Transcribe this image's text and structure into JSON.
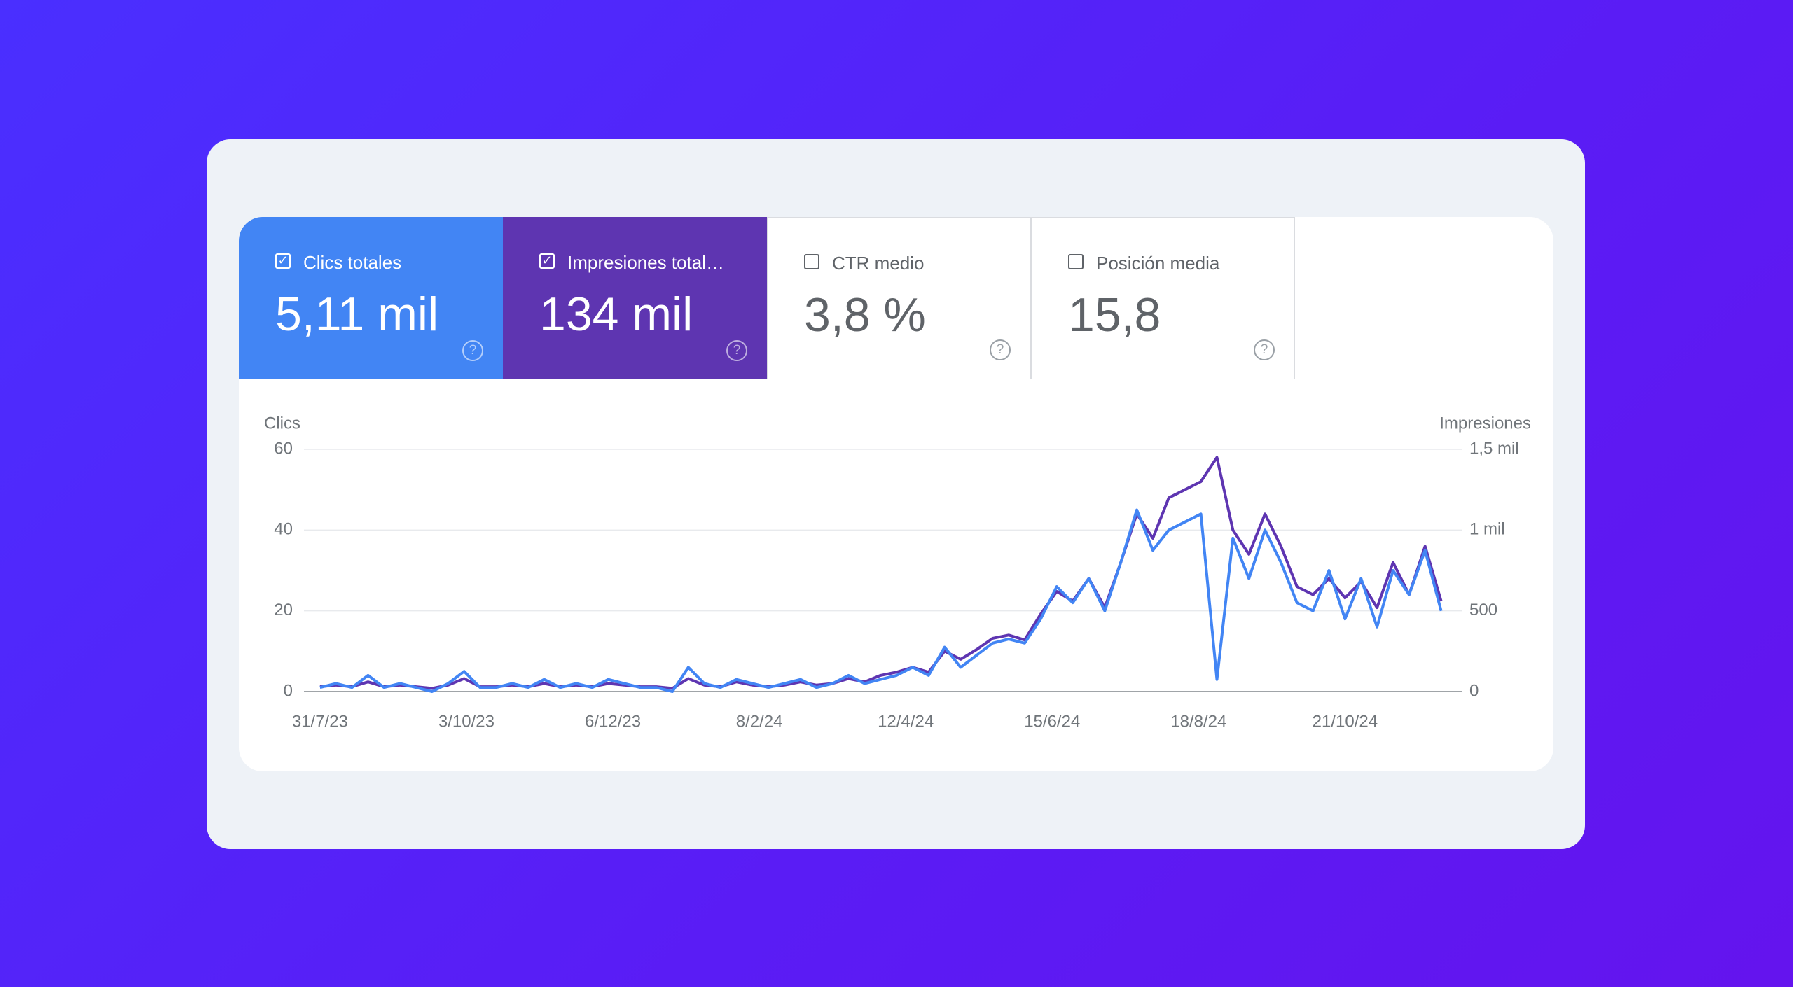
{
  "cards": [
    {
      "label": "Clics totales",
      "value": "5,11 mil",
      "checked": true
    },
    {
      "label": "Impresiones total…",
      "value": "134 mil",
      "checked": true
    },
    {
      "label": "CTR medio",
      "value": "3,8 %",
      "checked": false
    },
    {
      "label": "Posición media",
      "value": "15,8",
      "checked": false
    }
  ],
  "chart_data": {
    "type": "line",
    "ylabel": "Clics",
    "y2label": "Impresiones",
    "x": [
      "2023-07-31",
      "2023-08-07",
      "2023-08-14",
      "2023-08-21",
      "2023-08-28",
      "2023-09-04",
      "2023-09-11",
      "2023-09-18",
      "2023-09-25",
      "2023-10-02",
      "2023-10-09",
      "2023-10-16",
      "2023-10-23",
      "2023-10-30",
      "2023-11-06",
      "2023-11-13",
      "2023-11-20",
      "2023-11-27",
      "2023-12-04",
      "2023-12-11",
      "2023-12-18",
      "2023-12-25",
      "2024-01-01",
      "2024-01-08",
      "2024-01-15",
      "2024-01-22",
      "2024-01-29",
      "2024-02-05",
      "2024-02-12",
      "2024-02-19",
      "2024-02-26",
      "2024-03-04",
      "2024-03-11",
      "2024-03-18",
      "2024-03-25",
      "2024-04-01",
      "2024-04-08",
      "2024-04-15",
      "2024-04-22",
      "2024-04-29",
      "2024-05-06",
      "2024-05-13",
      "2024-05-20",
      "2024-05-27",
      "2024-06-03",
      "2024-06-10",
      "2024-06-17",
      "2024-06-24",
      "2024-07-01",
      "2024-07-08",
      "2024-07-15",
      "2024-07-22",
      "2024-07-29",
      "2024-08-05",
      "2024-08-12",
      "2024-08-19",
      "2024-08-26",
      "2024-09-02",
      "2024-09-09",
      "2024-09-16",
      "2024-09-23",
      "2024-09-30",
      "2024-10-07",
      "2024-10-14",
      "2024-10-21",
      "2024-10-28",
      "2024-11-04",
      "2024-11-11",
      "2024-11-18",
      "2024-11-25",
      "2024-12-02"
    ],
    "series": [
      {
        "color": "#4285f4",
        "values": [
          1,
          2,
          1,
          4,
          1,
          2,
          1,
          0,
          2,
          5,
          1,
          1,
          2,
          1,
          3,
          1,
          2,
          1,
          3,
          2,
          1,
          1,
          0,
          6,
          2,
          1,
          3,
          2,
          1,
          2,
          3,
          1,
          2,
          4,
          2,
          3,
          4,
          6,
          4,
          11,
          6,
          9,
          12,
          13,
          12,
          18,
          26,
          22,
          28,
          20,
          32,
          45,
          35,
          40,
          42,
          44,
          3,
          38,
          28,
          40,
          32,
          22,
          20,
          30,
          18,
          28,
          16,
          30,
          24,
          35,
          20
        ]
      },
      {
        "color": "#5e35b1",
        "axis": "y2",
        "values": [
          30,
          40,
          30,
          60,
          30,
          40,
          30,
          20,
          40,
          80,
          30,
          30,
          40,
          30,
          50,
          30,
          40,
          30,
          50,
          40,
          30,
          30,
          20,
          80,
          40,
          30,
          60,
          40,
          30,
          40,
          60,
          40,
          50,
          80,
          60,
          100,
          120,
          150,
          120,
          250,
          200,
          260,
          330,
          350,
          320,
          480,
          620,
          560,
          700,
          520,
          800,
          1100,
          950,
          1200,
          1250,
          1300,
          1450,
          1000,
          850,
          1100,
          900,
          650,
          600,
          700,
          580,
          680,
          520,
          800,
          600,
          900,
          560
        ]
      }
    ],
    "xlim": [
      "2023-07-24",
      "2024-12-11"
    ],
    "xticks": [
      {
        "value": "2023-07-31",
        "label": "31/7/23"
      },
      {
        "value": "2023-10-03",
        "label": "3/10/23"
      },
      {
        "value": "2023-12-06",
        "label": "6/12/23"
      },
      {
        "value": "2024-02-08",
        "label": "8/2/24"
      },
      {
        "value": "2024-04-12",
        "label": "12/4/24"
      },
      {
        "value": "2024-06-15",
        "label": "15/6/24"
      },
      {
        "value": "2024-08-18",
        "label": "18/8/24"
      },
      {
        "value": "2024-10-21",
        "label": "21/10/24"
      }
    ],
    "ylim": [
      0,
      60
    ],
    "yticks": [
      0,
      20,
      40,
      60
    ],
    "y2lim": [
      0,
      1500
    ],
    "y2ticks": [
      0,
      500,
      {
        "value": 1000,
        "label": "1 mil"
      },
      {
        "value": 1500,
        "label": "1,5 mil"
      }
    ],
    "grid": true
  }
}
